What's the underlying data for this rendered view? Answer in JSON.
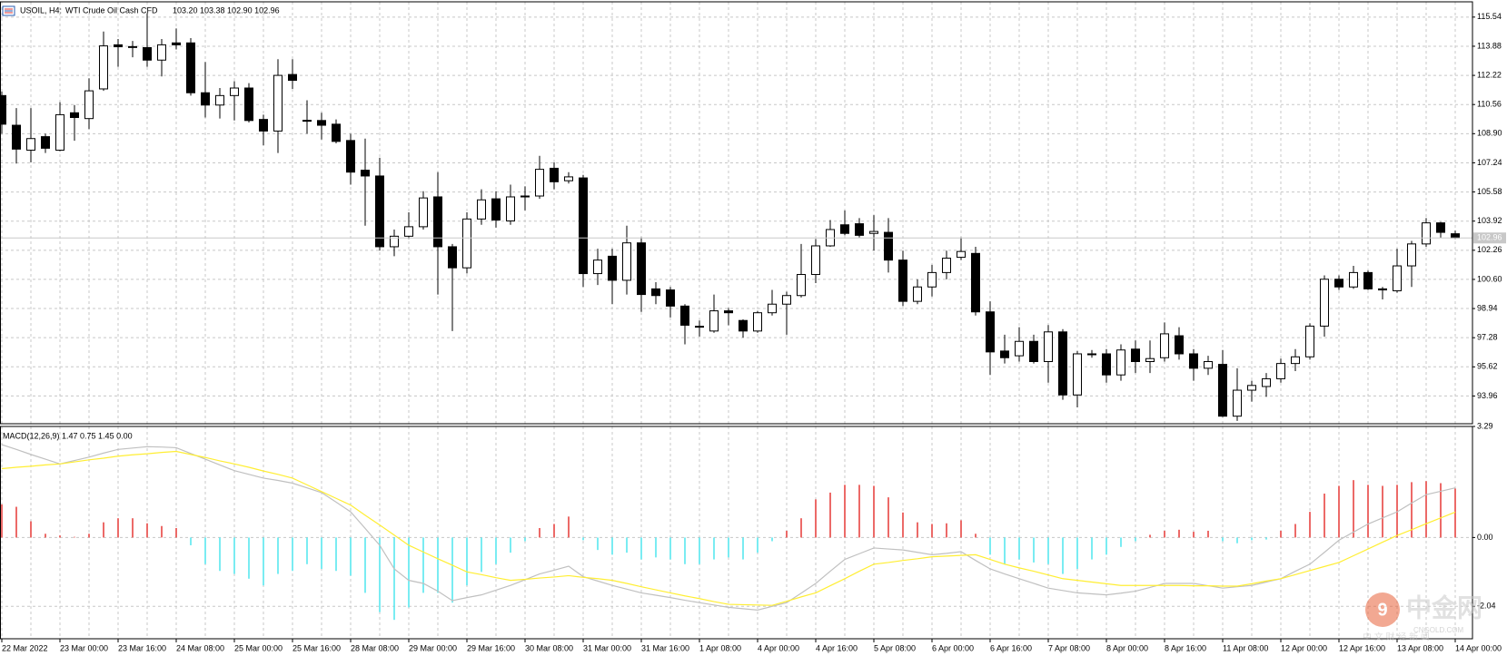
{
  "chart_data": [
    {
      "type": "candlestick",
      "symbol": "USOIL, H4:",
      "title": "WTI Crude Oil Cash CFD",
      "ohlc_label": "103.20 103.38 102.90 102.96",
      "categories": [
        "22 Mar 2022",
        null,
        null,
        null,
        "23 Mar 00:00",
        null,
        null,
        null,
        "23 Mar 16:00",
        null,
        null,
        null,
        "24 Mar 08:00",
        null,
        null,
        null,
        "25 Mar 00:00",
        null,
        null,
        null,
        "25 Mar 16:00",
        null,
        null,
        null,
        "28 Mar 08:00",
        null,
        null,
        null,
        "29 Mar 00:00",
        null,
        null,
        null,
        "29 Mar 16:00",
        null,
        null,
        null,
        "30 Mar 08:00",
        null,
        null,
        null,
        "31 Mar 00:00",
        null,
        null,
        null,
        "31 Mar 16:00",
        null,
        null,
        null,
        "1 Apr 08:00",
        null,
        null,
        null,
        "4 Apr 00:00",
        null,
        null,
        null,
        "4 Apr 16:00",
        null,
        null,
        null,
        "5 Apr 08:00",
        null,
        null,
        null,
        "6 Apr 00:00",
        null,
        null,
        null,
        "6 Apr 16:00",
        null,
        null,
        null,
        "7 Apr 08:00",
        null,
        null,
        null,
        "8 Apr 00:00",
        null,
        null,
        null,
        "8 Apr 16:00",
        null,
        null,
        null,
        "11 Apr 08:00",
        null,
        null,
        null,
        "12 Apr 00:00",
        null,
        null,
        null,
        "12 Apr 16:00",
        null,
        null,
        null,
        "13 Apr 08:00",
        null,
        null,
        null,
        "14 Apr 00:00"
      ],
      "open": [
        111.07,
        109.38,
        107.96,
        108.73,
        107.96,
        110.09,
        109.76,
        111.45,
        113.96,
        113.86,
        113.8,
        113.09,
        114.07,
        114.07,
        111.23,
        110.53,
        111.07,
        111.5,
        109.71,
        109.05,
        112.27,
        109.66,
        109.65,
        109.44,
        108.51,
        106.82,
        106.49,
        102.46,
        103.06,
        103.6,
        105.3,
        102.46,
        101.26,
        104.04,
        105.19,
        103.93,
        105.3,
        105.35,
        106.93,
        106.22,
        106.38,
        100.93,
        101.92,
        100.55,
        102.68,
        100.06,
        100.0,
        99.08,
        97.93,
        97.66,
        98.81,
        98.26,
        97.66,
        98.7,
        99.19,
        99.68,
        100.88,
        102.51,
        103.71,
        103.77,
        103.22,
        103.28,
        101.7,
        99.35,
        100.17,
        100.99,
        101.86,
        102.08,
        98.75,
        96.52,
        96.25,
        97.07,
        95.92,
        97.61,
        94.02,
        96.33,
        96.36,
        95.16,
        96.63,
        95.92,
        96.14,
        97.39,
        96.36,
        95.54,
        95.76,
        92.81,
        94.29,
        94.5,
        94.94,
        95.81,
        96.19,
        97.94,
        100.61,
        100.17,
        100.99,
        100.06,
        99.95,
        101.37,
        102.62,
        103.82,
        103.2
      ],
      "high": [
        111.3,
        110.36,
        110.36,
        108.9,
        110.69,
        110.53,
        112.05,
        114.72,
        114.29,
        114.18,
        115.76,
        114.29,
        114.89,
        114.34,
        112.98,
        111.5,
        111.89,
        111.78,
        109.98,
        113.14,
        113.14,
        110.8,
        110.09,
        109.71,
        108.89,
        108.62,
        107.53,
        103.44,
        104.42,
        105.62,
        106.71,
        102.62,
        104.42,
        105.73,
        105.62,
        106.0,
        105.9,
        107.64,
        107.26,
        106.71,
        106.55,
        102.35,
        102.35,
        103.66,
        103.0,
        100.44,
        100.17,
        99.19,
        98.26,
        99.74,
        98.97,
        98.32,
        98.81,
        100.0,
        99.9,
        102.62,
        102.9,
        103.98,
        104.53,
        104.09,
        104.26,
        104.09,
        102.24,
        100.6,
        101.43,
        102.24,
        103.0,
        102.46,
        99.35,
        97.45,
        97.88,
        97.45,
        98.0,
        97.77,
        96.52,
        96.58,
        96.63,
        96.9,
        97.12,
        97.12,
        98.15,
        97.88,
        96.63,
        96.25,
        96.58,
        95.54,
        94.83,
        95.27,
        96.09,
        96.63,
        98.1,
        100.83,
        100.83,
        101.37,
        101.1,
        100.17,
        102.35,
        102.79,
        104.09,
        103.88,
        103.38
      ],
      "low": [
        108.9,
        107.2,
        107.26,
        107.8,
        107.9,
        108.5,
        109.16,
        111.34,
        112.71,
        113.25,
        112.71,
        112.16,
        113.7,
        111.07,
        109.82,
        109.76,
        109.65,
        109.54,
        108.24,
        107.8,
        111.45,
        108.9,
        108.57,
        108.35,
        106.0,
        103.66,
        102.24,
        101.92,
        102.9,
        103.44,
        99.74,
        97.66,
        100.94,
        103.71,
        103.55,
        103.71,
        104.53,
        105.19,
        105.73,
        106.06,
        100.17,
        100.28,
        99.19,
        99.74,
        98.75,
        99.19,
        98.43,
        96.9,
        97.34,
        97.56,
        97.99,
        97.28,
        97.56,
        98.54,
        97.45,
        99.57,
        100.39,
        102.46,
        103.11,
        102.99,
        102.24,
        100.99,
        99.08,
        99.19,
        99.63,
        100.6,
        101.7,
        98.54,
        95.16,
        95.81,
        95.92,
        95.81,
        94.72,
        93.74,
        93.31,
        96.14,
        94.72,
        94.83,
        95.27,
        95.27,
        95.92,
        96.03,
        94.83,
        95.16,
        92.76,
        92.54,
        93.64,
        93.91,
        94.72,
        95.38,
        96.03,
        97.34,
        100.0,
        100.06,
        100.0,
        99.46,
        99.84,
        100.17,
        102.46,
        102.95,
        102.9
      ],
      "close": [
        109.44,
        108.02,
        108.62,
        108.07,
        109.98,
        109.82,
        111.34,
        113.9,
        113.85,
        113.85,
        113.09,
        113.96,
        113.96,
        111.23,
        110.53,
        111.07,
        111.5,
        109.65,
        109.05,
        112.22,
        111.94,
        109.65,
        109.38,
        108.46,
        106.71,
        106.49,
        102.46,
        103.06,
        103.6,
        105.24,
        102.46,
        101.26,
        104.04,
        105.13,
        103.98,
        105.3,
        105.35,
        106.87,
        106.16,
        106.44,
        100.93,
        101.7,
        100.55,
        102.68,
        99.74,
        99.68,
        99.08,
        97.99,
        97.88,
        98.81,
        98.7,
        97.66,
        98.7,
        99.19,
        99.68,
        100.88,
        102.51,
        103.44,
        103.22,
        103.11,
        103.33,
        101.7,
        99.35,
        100.17,
        100.99,
        101.81,
        102.19,
        98.75,
        96.47,
        96.14,
        97.07,
        95.92,
        97.61,
        94.02,
        96.36,
        96.36,
        95.16,
        96.58,
        95.92,
        96.09,
        97.5,
        96.36,
        95.54,
        95.92,
        92.81,
        94.29,
        94.56,
        94.94,
        95.81,
        96.19,
        97.94,
        100.61,
        100.17,
        100.99,
        100.06,
        100.0,
        101.37,
        102.62,
        103.82,
        103.28,
        102.96
      ],
      "up_color": "#ffffff",
      "down_color": "#000000",
      "wick_color": "#000000",
      "ylim": [
        92.38,
        116.41
      ],
      "yticks": [
        115.54,
        113.88,
        112.22,
        110.56,
        {
          "value": 108.9,
          "label": "108.90"
        },
        107.24,
        105.58,
        103.92,
        102.26,
        {
          "value": 100.6,
          "label": "100.60"
        },
        98.94,
        97.28,
        95.62,
        93.96
      ],
      "last_price": {
        "value": 102.96,
        "label": "102.96"
      },
      "grid": true
    },
    {
      "type": "macd",
      "title": "MACD(12,26,9) 1.47 0.75 1.45 0.00",
      "ylim": [
        -3.0,
        3.29
      ],
      "yticks": [
        3.29,
        {
          "value": 0,
          "label": "0.00"
        },
        -2.04
      ],
      "histogram": {
        "positive_color": "#e53935",
        "negative_color": "#4ee6ee",
        "values": [
          0.98,
          0.91,
          0.48,
          0.11,
          0.06,
          0.02,
          0.11,
          0.45,
          0.57,
          0.57,
          0.42,
          0.34,
          0.28,
          -0.23,
          -0.79,
          -0.99,
          -1.08,
          -1.22,
          -1.42,
          -1.08,
          -0.99,
          -0.79,
          -0.93,
          -0.99,
          -1.13,
          -1.64,
          -2.21,
          -2.44,
          -2.07,
          -1.64,
          -1.64,
          -1.93,
          -1.42,
          -1.02,
          -0.79,
          -0.45,
          -0.11,
          0.28,
          0.4,
          0.62,
          -0.08,
          -0.37,
          -0.51,
          -0.45,
          -0.65,
          -0.59,
          -0.65,
          -0.79,
          -0.79,
          -0.65,
          -0.59,
          -0.65,
          -0.45,
          -0.11,
          0.2,
          0.57,
          1.13,
          1.33,
          1.56,
          1.56,
          1.53,
          1.19,
          0.74,
          0.45,
          0.4,
          0.42,
          0.51,
          0.11,
          -0.51,
          -0.79,
          -0.65,
          -0.74,
          -0.79,
          -1.08,
          -0.93,
          -0.65,
          -0.51,
          -0.28,
          -0.11,
          0.08,
          0.2,
          0.23,
          0.17,
          0.2,
          -0.11,
          -0.17,
          -0.08,
          -0.06,
          0.2,
          0.4,
          0.76,
          1.3,
          1.53,
          1.7,
          1.56,
          1.53,
          1.56,
          1.64,
          1.67,
          1.61,
          1.45
        ]
      },
      "lines": [
        {
          "color": "#c0c0c0",
          "values": [
            2.75,
            2.61,
            2.46,
            2.32,
            2.18,
            2.28,
            2.38,
            2.5,
            2.61,
            2.65,
            2.69,
            2.68,
            2.66,
            2.49,
            2.32,
            2.15,
            1.98,
            1.87,
            1.76,
            1.69,
            1.61,
            1.47,
            1.33,
            1.05,
            0.76,
            0.27,
            -0.23,
            -0.93,
            -1.27,
            -1.36,
            -1.59,
            -1.87,
            -1.78,
            -1.7,
            -1.56,
            -1.42,
            -1.25,
            -1.08,
            -0.97,
            -0.85,
            -1.16,
            -1.29,
            -1.42,
            -1.53,
            -1.64,
            -1.71,
            -1.78,
            -1.86,
            -1.93,
            -2.0,
            -2.07,
            -2.11,
            -2.15,
            -2.04,
            -1.93,
            -1.65,
            -1.36,
            -1.0,
            -0.65,
            -0.48,
            -0.31,
            -0.34,
            -0.37,
            -0.44,
            -0.51,
            -0.47,
            -0.42,
            -0.68,
            -0.93,
            -1.08,
            -1.22,
            -1.36,
            -1.5,
            -1.57,
            -1.64,
            -1.67,
            -1.7,
            -1.65,
            -1.59,
            -1.48,
            -1.36,
            -1.36,
            -1.36,
            -1.43,
            -1.5,
            -1.46,
            -1.42,
            -1.32,
            -1.22,
            -1.0,
            -0.79,
            -0.44,
            -0.08,
            0.16,
            0.4,
            0.58,
            0.76,
            1.02,
            1.27,
            1.37,
            1.47
          ]
        },
        {
          "color": "#ffee33",
          "values": [
            2.04,
            2.08,
            2.11,
            2.15,
            2.18,
            2.24,
            2.3,
            2.35,
            2.41,
            2.45,
            2.48,
            2.52,
            2.55,
            2.46,
            2.37,
            2.27,
            2.18,
            2.08,
            1.97,
            1.87,
            1.76,
            1.56,
            1.36,
            1.16,
            0.96,
            0.66,
            0.37,
            0.07,
            -0.23,
            -0.43,
            -0.63,
            -0.82,
            -1.02,
            -1.1,
            -1.19,
            -1.27,
            -1.24,
            -1.2,
            -1.17,
            -1.13,
            -1.18,
            -1.22,
            -1.27,
            -1.36,
            -1.46,
            -1.55,
            -1.64,
            -1.73,
            -1.81,
            -1.9,
            -1.98,
            -1.99,
            -2.0,
            -2.01,
            -1.89,
            -1.76,
            -1.64,
            -1.43,
            -1.22,
            -1.0,
            -0.79,
            -0.74,
            -0.68,
            -0.63,
            -0.57,
            -0.55,
            -0.53,
            -0.51,
            -0.65,
            -0.79,
            -0.9,
            -1.0,
            -1.11,
            -1.22,
            -1.27,
            -1.32,
            -1.37,
            -1.42,
            -1.42,
            -1.42,
            -1.42,
            -1.42,
            -1.43,
            -1.43,
            -1.44,
            -1.44,
            -1.37,
            -1.29,
            -1.22,
            -1.1,
            -0.98,
            -0.86,
            -0.74,
            -0.54,
            -0.34,
            -0.14,
            0.06,
            0.23,
            0.41,
            0.58,
            0.75
          ]
        }
      ],
      "grid": true
    }
  ],
  "watermark": {
    "name": "中金网",
    "domain": "CNGOLD.COM",
    "tagline": "中 文 财 经 新 闻"
  }
}
